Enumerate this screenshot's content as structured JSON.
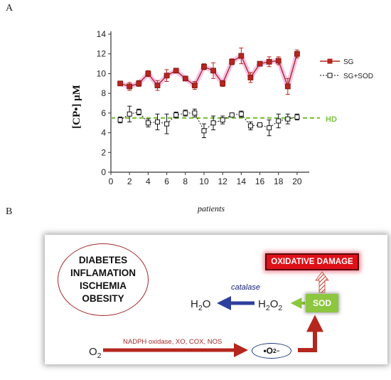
{
  "panels": {
    "a": "A",
    "b": "B"
  },
  "chart_data": {
    "type": "line",
    "ylabel": "[CP•] μM",
    "xlabel": "patients",
    "xlim": [
      0,
      21
    ],
    "ylim": [
      0,
      14
    ],
    "x_ticks": [
      0,
      2,
      4,
      6,
      8,
      10,
      12,
      14,
      16,
      18,
      20
    ],
    "y_ticks": [
      0,
      2,
      4,
      6,
      8,
      10,
      12,
      14
    ],
    "reference_line": {
      "label": "HD",
      "y": 5.5,
      "color": "#7dc242"
    },
    "legend_position": "right",
    "series": [
      {
        "name": "SG",
        "color": "#b5261e",
        "marker": "filled-square",
        "x": [
          1,
          2,
          3,
          4,
          5,
          6,
          7,
          8,
          9,
          10,
          11,
          12,
          13,
          14,
          15,
          16,
          17,
          18,
          19,
          20
        ],
        "y": [
          9.0,
          8.7,
          9.0,
          10.0,
          8.8,
          9.8,
          10.3,
          9.5,
          8.8,
          10.7,
          10.3,
          9.0,
          11.2,
          11.8,
          9.6,
          11.0,
          11.2,
          11.3,
          8.7,
          12.0
        ],
        "err": [
          0.2,
          0.4,
          0.3,
          0.3,
          0.5,
          0.6,
          0.2,
          0.2,
          0.4,
          0.3,
          0.8,
          0.3,
          0.3,
          0.8,
          0.5,
          0.2,
          0.5,
          0.4,
          0.8,
          0.4
        ]
      },
      {
        "name": "SG+SOD",
        "color": "#111111",
        "marker": "open-square",
        "x": [
          1,
          2,
          3,
          4,
          5,
          6,
          7,
          8,
          9,
          10,
          11,
          12,
          13,
          14,
          15,
          16,
          17,
          18,
          19,
          20
        ],
        "y": [
          5.3,
          5.9,
          6.1,
          5.0,
          5.1,
          4.9,
          5.8,
          6.0,
          6.0,
          4.2,
          5.0,
          5.3,
          5.8,
          5.9,
          4.7,
          4.8,
          4.5,
          5.2,
          5.4,
          5.6
        ],
        "err": [
          0.3,
          0.8,
          0.3,
          0.4,
          0.8,
          1.0,
          0.3,
          0.3,
          0.4,
          0.7,
          0.7,
          0.4,
          0.2,
          0.3,
          0.4,
          0.2,
          0.8,
          0.7,
          0.5,
          0.3
        ]
      }
    ]
  },
  "diagram": {
    "conditions": [
      "DIABETES",
      "INFLAMATION",
      "ISCHEMIA",
      "OBESITY"
    ],
    "oxidative_damage": "OXIDATIVE DAMAGE",
    "sod": "SOD",
    "catalase": "catalase",
    "h2o": {
      "base": "H",
      "sub": "2",
      "tail": "O"
    },
    "h2o2": {
      "base": "H",
      "sub1": "2",
      "mid": "O",
      "sub2": "2"
    },
    "o2": {
      "base": "O",
      "sub": "2"
    },
    "enzymes": "NADPH oxidase, XO, COX, NOS",
    "superoxide": {
      "base": "•O",
      "sub": "2",
      "sup": "−"
    },
    "colors": {
      "arrow_red": "#b5261e",
      "arrow_blue": "#2e3f9e",
      "arrow_green": "#8dc63f"
    }
  }
}
